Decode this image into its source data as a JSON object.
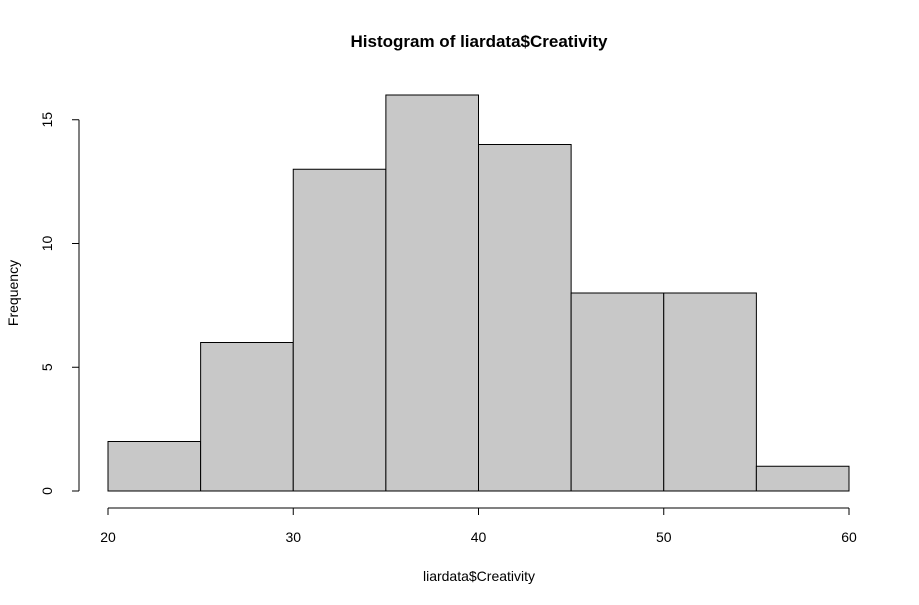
{
  "chart_data": {
    "type": "bar",
    "title": "Histogram of liardata$Creativity",
    "xlabel": "liardata$Creativity",
    "ylabel": "Frequency",
    "bins": [
      {
        "start": 20,
        "end": 25,
        "count": 2
      },
      {
        "start": 25,
        "end": 30,
        "count": 6
      },
      {
        "start": 30,
        "end": 35,
        "count": 13
      },
      {
        "start": 35,
        "end": 40,
        "count": 16
      },
      {
        "start": 40,
        "end": 45,
        "count": 14
      },
      {
        "start": 45,
        "end": 50,
        "count": 8
      },
      {
        "start": 50,
        "end": 55,
        "count": 8
      },
      {
        "start": 55,
        "end": 60,
        "count": 1
      }
    ],
    "xlim": [
      20,
      60
    ],
    "ylim": [
      0,
      16
    ],
    "x_ticks": [
      20,
      30,
      40,
      50,
      60
    ],
    "y_ticks": [
      0,
      5,
      10,
      15
    ],
    "grid": false,
    "bar_color": "#c8c8c8",
    "edge_color": "#000000"
  }
}
